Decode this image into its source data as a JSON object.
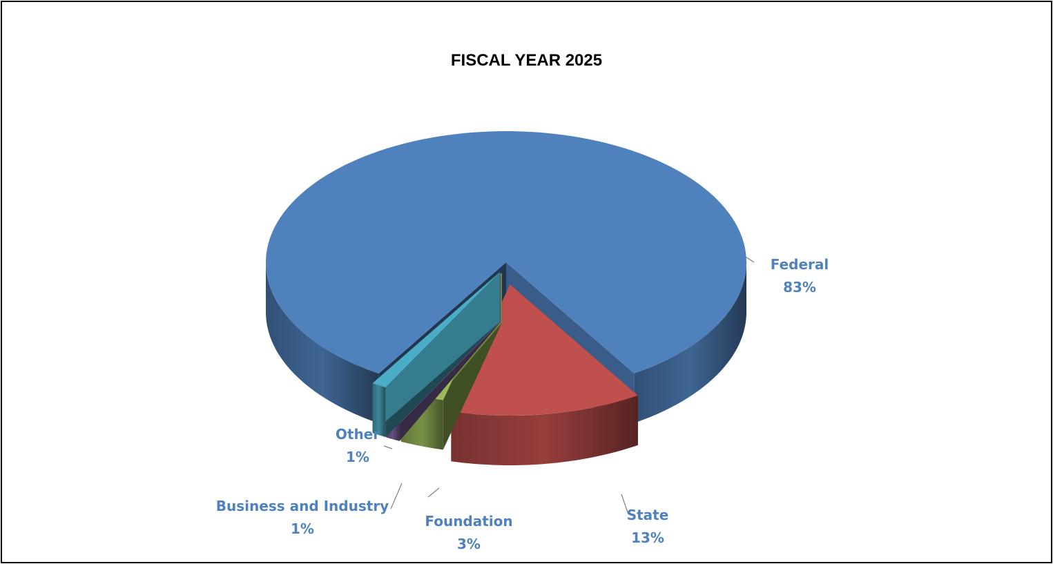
{
  "chart_data": {
    "type": "pie",
    "title": "FISCAL YEAR 2025",
    "three_d": true,
    "exploded": true,
    "slices": [
      {
        "label": "Federal",
        "value": 83,
        "percent_label": "83%",
        "color": "#4f81bd"
      },
      {
        "label": "State",
        "value": 13,
        "percent_label": "13%",
        "color": "#c0504d"
      },
      {
        "label": "Foundation",
        "value": 3,
        "percent_label": "3%",
        "color": "#9bbb59"
      },
      {
        "label": "Business and Industry",
        "value": 1,
        "percent_label": "1%",
        "color": "#8064a2"
      },
      {
        "label": "Other",
        "value": 1,
        "percent_label": "1%",
        "color": "#4bacc6"
      }
    ],
    "label_color": "#4f81bd"
  }
}
